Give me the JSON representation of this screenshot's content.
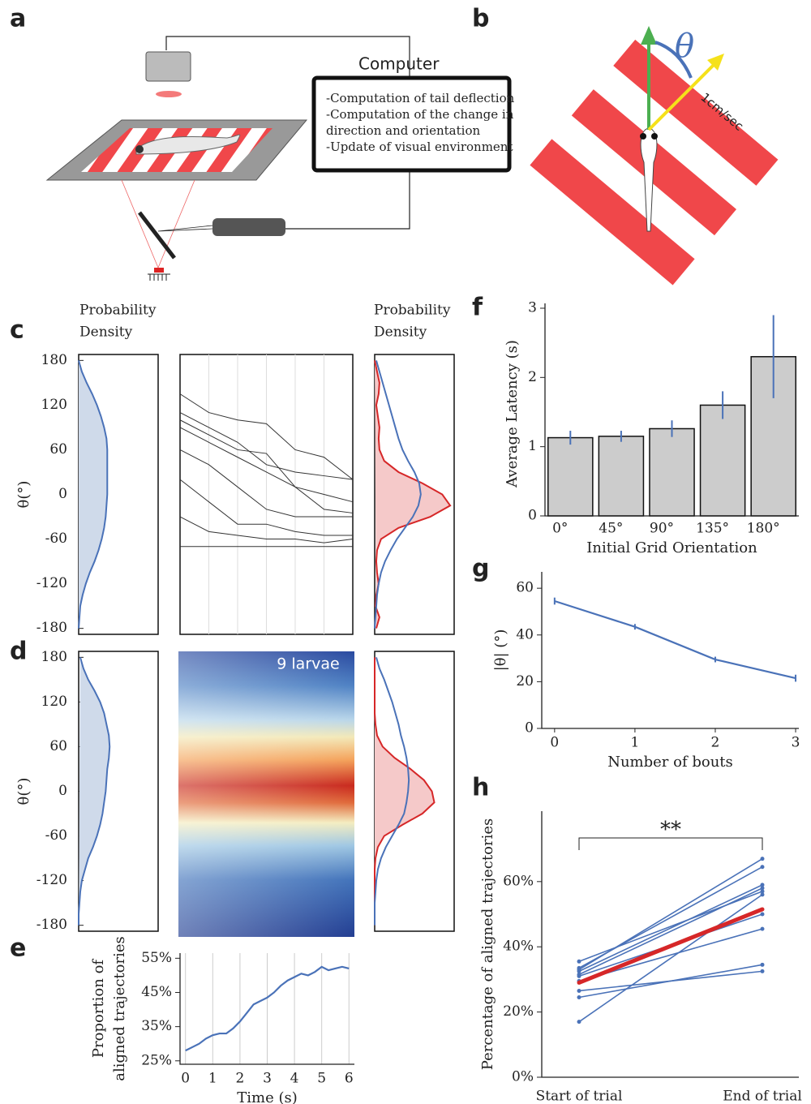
{
  "panel_labels": [
    "a",
    "b",
    "c",
    "d",
    "e",
    "f",
    "g",
    "h"
  ],
  "diagram_a": {
    "computer_title": "Computer",
    "computer_lines": [
      "-Computation of tail deflection",
      "-Computation of the change in",
      "direction and orientation",
      "-Update of visual environment"
    ]
  },
  "diagram_b": {
    "angle_label": "θ",
    "speed_label": "1cm/sec"
  },
  "density_header": {
    "left": [
      "Probability",
      "Density"
    ],
    "right": [
      "Probability",
      "Density"
    ]
  },
  "heatmap_label": "9 larvae",
  "chart_data": [
    {
      "type": "density",
      "ylabel": "θ(°)",
      "x": [
        180,
        165,
        150,
        135,
        120,
        105,
        90,
        75,
        60,
        45,
        30,
        15,
        0,
        -15,
        -30,
        -45,
        -60,
        -75,
        -90,
        -105,
        -120,
        -135,
        -150,
        -165,
        -180
      ],
      "ylim": [
        -188,
        188
      ],
      "xlim": [
        0,
        1
      ],
      "yticks": [
        180,
        120,
        60,
        0,
        -60,
        -120,
        -180
      ],
      "series": [
        {
          "color": "#4a72b8",
          "fill": "#cfdaea",
          "values": [
            0,
            0.04,
            0.1,
            0.17,
            0.23,
            0.28,
            0.32,
            0.35,
            0.36,
            0.36,
            0.36,
            0.36,
            0.36,
            0.35,
            0.34,
            0.32,
            0.29,
            0.25,
            0.2,
            0.14,
            0.09,
            0.05,
            0.02,
            0.01,
            0
          ]
        }
      ]
    },
    {
      "type": "trajectories",
      "x": [
        0,
        1,
        2,
        3,
        4,
        5,
        6
      ],
      "xlim": [
        0,
        6
      ],
      "ylim": [
        -188,
        188
      ],
      "grid": true,
      "series": [
        {
          "color": "#333333",
          "values": [
            135,
            110,
            100,
            95,
            60,
            50,
            20
          ]
        },
        {
          "color": "#333333",
          "values": [
            110,
            90,
            70,
            40,
            30,
            25,
            20
          ]
        },
        {
          "color": "#333333",
          "values": [
            100,
            80,
            60,
            55,
            10,
            0,
            -10
          ]
        },
        {
          "color": "#333333",
          "values": [
            90,
            70,
            50,
            30,
            10,
            -20,
            -25
          ]
        },
        {
          "color": "#333333",
          "values": [
            60,
            40,
            10,
            -20,
            -30,
            -30,
            -30
          ]
        },
        {
          "color": "#333333",
          "values": [
            20,
            -10,
            -40,
            -40,
            -50,
            -55,
            -55
          ]
        },
        {
          "color": "#333333",
          "values": [
            -30,
            -50,
            -55,
            -60,
            -60,
            -65,
            -60
          ]
        },
        {
          "color": "#333333",
          "values": [
            -70,
            -70,
            -70,
            -70,
            -70,
            -70,
            -70
          ]
        }
      ]
    },
    {
      "type": "density",
      "x": [
        180,
        165,
        150,
        135,
        120,
        105,
        90,
        75,
        60,
        45,
        30,
        15,
        0,
        -15,
        -30,
        -45,
        -60,
        -75,
        -90,
        -105,
        -120,
        -135,
        -150,
        -165,
        -180
      ],
      "ylim": [
        -188,
        188
      ],
      "xlim": [
        0,
        1
      ],
      "series": [
        {
          "color": "#d62728",
          "fill": "#f5c9c9",
          "values": [
            0,
            0.03,
            0.06,
            0.05,
            0.02,
            0.04,
            0.06,
            0.05,
            0.06,
            0.12,
            0.3,
            0.6,
            0.85,
            0.95,
            0.7,
            0.3,
            0.08,
            0.03,
            0.02,
            0.03,
            0.05,
            0.02,
            0.01,
            0.06,
            0.02
          ]
        },
        {
          "color": "#4a72b8",
          "values": [
            0.02,
            0.06,
            0.1,
            0.14,
            0.18,
            0.22,
            0.26,
            0.3,
            0.35,
            0.42,
            0.5,
            0.56,
            0.58,
            0.55,
            0.48,
            0.38,
            0.28,
            0.2,
            0.13,
            0.08,
            0.05,
            0.03,
            0.02,
            0.01,
            0
          ]
        }
      ]
    },
    {
      "type": "density",
      "ylabel": "θ(°)",
      "x": [
        180,
        165,
        150,
        135,
        120,
        105,
        90,
        75,
        60,
        45,
        30,
        15,
        0,
        -15,
        -30,
        -45,
        -60,
        -75,
        -90,
        -105,
        -120,
        -135,
        -150,
        -165,
        -180
      ],
      "ylim": [
        -188,
        188
      ],
      "xlim": [
        0,
        1
      ],
      "yticks": [
        180,
        120,
        60,
        0,
        -60,
        -120,
        -180
      ],
      "series": [
        {
          "color": "#4a72b8",
          "fill": "#cfdaea",
          "values": [
            0.02,
            0.06,
            0.12,
            0.2,
            0.27,
            0.32,
            0.35,
            0.38,
            0.39,
            0.38,
            0.36,
            0.35,
            0.34,
            0.32,
            0.3,
            0.27,
            0.23,
            0.18,
            0.12,
            0.08,
            0.04,
            0.02,
            0.01,
            0,
            0
          ]
        }
      ]
    },
    {
      "type": "density",
      "x": [
        180,
        165,
        150,
        135,
        120,
        105,
        90,
        75,
        60,
        45,
        30,
        15,
        0,
        -15,
        -30,
        -45,
        -60,
        -75,
        -90,
        -105,
        -120,
        -135,
        -150,
        -165,
        -180
      ],
      "ylim": [
        -188,
        188
      ],
      "xlim": [
        0,
        1
      ],
      "series": [
        {
          "color": "#d62728",
          "fill": "#f5c9c9",
          "values": [
            0,
            0,
            0,
            0,
            0,
            0,
            0.01,
            0.03,
            0.1,
            0.25,
            0.45,
            0.62,
            0.72,
            0.75,
            0.6,
            0.35,
            0.12,
            0.04,
            0.01,
            0,
            0,
            0,
            0,
            0,
            0
          ]
        },
        {
          "color": "#4a72b8",
          "values": [
            0.02,
            0.06,
            0.12,
            0.17,
            0.22,
            0.26,
            0.3,
            0.33,
            0.37,
            0.4,
            0.42,
            0.43,
            0.42,
            0.4,
            0.37,
            0.3,
            0.22,
            0.14,
            0.08,
            0.04,
            0.02,
            0.01,
            0,
            0,
            0
          ]
        }
      ]
    },
    {
      "type": "line",
      "ylabel": [
        "Proportion of",
        "aligned trajectories"
      ],
      "xlabel": "Time (s)",
      "grid": true,
      "x": [
        0,
        0.25,
        0.5,
        0.75,
        1,
        1.25,
        1.5,
        1.75,
        2,
        2.25,
        2.5,
        2.75,
        3,
        3.25,
        3.5,
        3.75,
        4,
        4.25,
        4.5,
        4.75,
        5,
        5.25,
        5.5,
        5.75,
        6
      ],
      "series": [
        {
          "color": "#4a72b8",
          "values": [
            28,
            29,
            30,
            31.5,
            32.5,
            33,
            33,
            34.5,
            36.5,
            39,
            41.5,
            42.5,
            43.5,
            45,
            47,
            48.5,
            49.5,
            50.5,
            50,
            51,
            52.5,
            51.5,
            52,
            52.5,
            52
          ]
        }
      ],
      "xlim": [
        -0.2,
        6.2
      ],
      "xticks": [
        0,
        1,
        2,
        3,
        4,
        5,
        6
      ],
      "ylim": [
        24,
        56.5
      ],
      "yticks": [
        {
          "value": 25,
          "label": "25%"
        },
        {
          "value": 35,
          "label": "35%"
        },
        {
          "value": 45,
          "label": "45%"
        },
        {
          "value": 55,
          "label": "55%"
        }
      ]
    },
    {
      "type": "bar",
      "ylabel": "Average Latency (s)",
      "xlabel": "Initial Grid Orientation",
      "categories": [
        "0°",
        "45°",
        "90°",
        "135°",
        "180°"
      ],
      "values": [
        1.13,
        1.15,
        1.26,
        1.6,
        2.3
      ],
      "errors": [
        0.1,
        0.08,
        0.12,
        0.2,
        0.6
      ],
      "color": "#cccccc",
      "error_color": "#4a72b8",
      "ylim": [
        0,
        3.07
      ],
      "yticks": [
        0,
        1,
        2,
        3
      ]
    },
    {
      "type": "line",
      "ylabel": "|θ| (°)",
      "xlabel": "Number of bouts",
      "x": [
        0,
        1,
        2,
        3
      ],
      "series": [
        {
          "color": "#4a72b8",
          "values": [
            54.5,
            43.5,
            29.5,
            21.5
          ],
          "errors": [
            1.5,
            1.2,
            1.2,
            1.5
          ]
        }
      ],
      "xlim": [
        -0.16,
        3.04
      ],
      "xticks": [
        0,
        1,
        2,
        3
      ],
      "ylim": [
        0,
        67
      ],
      "yticks": [
        0,
        20,
        40,
        60
      ]
    },
    {
      "type": "slope",
      "ylabel": "Percentage of aligned trajectories",
      "categories": [
        "Start of trial",
        "End of trial"
      ],
      "annotation": "**",
      "ylim": [
        0,
        81.6
      ],
      "yticks": [
        {
          "value": 0,
          "label": "0%"
        },
        {
          "value": 20,
          "label": "20%"
        },
        {
          "value": 40,
          "label": "40%"
        },
        {
          "value": 60,
          "label": "60%"
        }
      ],
      "series": [
        {
          "color": "#4a72b8",
          "values": [
            35.5,
            57
          ]
        },
        {
          "color": "#4a72b8",
          "values": [
            33.5,
            64.5
          ]
        },
        {
          "color": "#4a72b8",
          "values": [
            32.5,
            59
          ]
        },
        {
          "color": "#4a72b8",
          "values": [
            31.5,
            58
          ]
        },
        {
          "color": "#4a72b8",
          "values": [
            31,
            50
          ]
        },
        {
          "color": "#4a72b8",
          "values": [
            29.5,
            45.5
          ]
        },
        {
          "color": "#4a72b8",
          "values": [
            26.5,
            32.5
          ]
        },
        {
          "color": "#4a72b8",
          "values": [
            24.5,
            34.5
          ]
        },
        {
          "color": "#4a72b8",
          "values": [
            17,
            56
          ]
        },
        {
          "color": "#4a72b8",
          "values": [
            33,
            67
          ]
        },
        {
          "color": "#d62728",
          "values": [
            29,
            51.5
          ],
          "linewidth": 5
        }
      ]
    }
  ]
}
